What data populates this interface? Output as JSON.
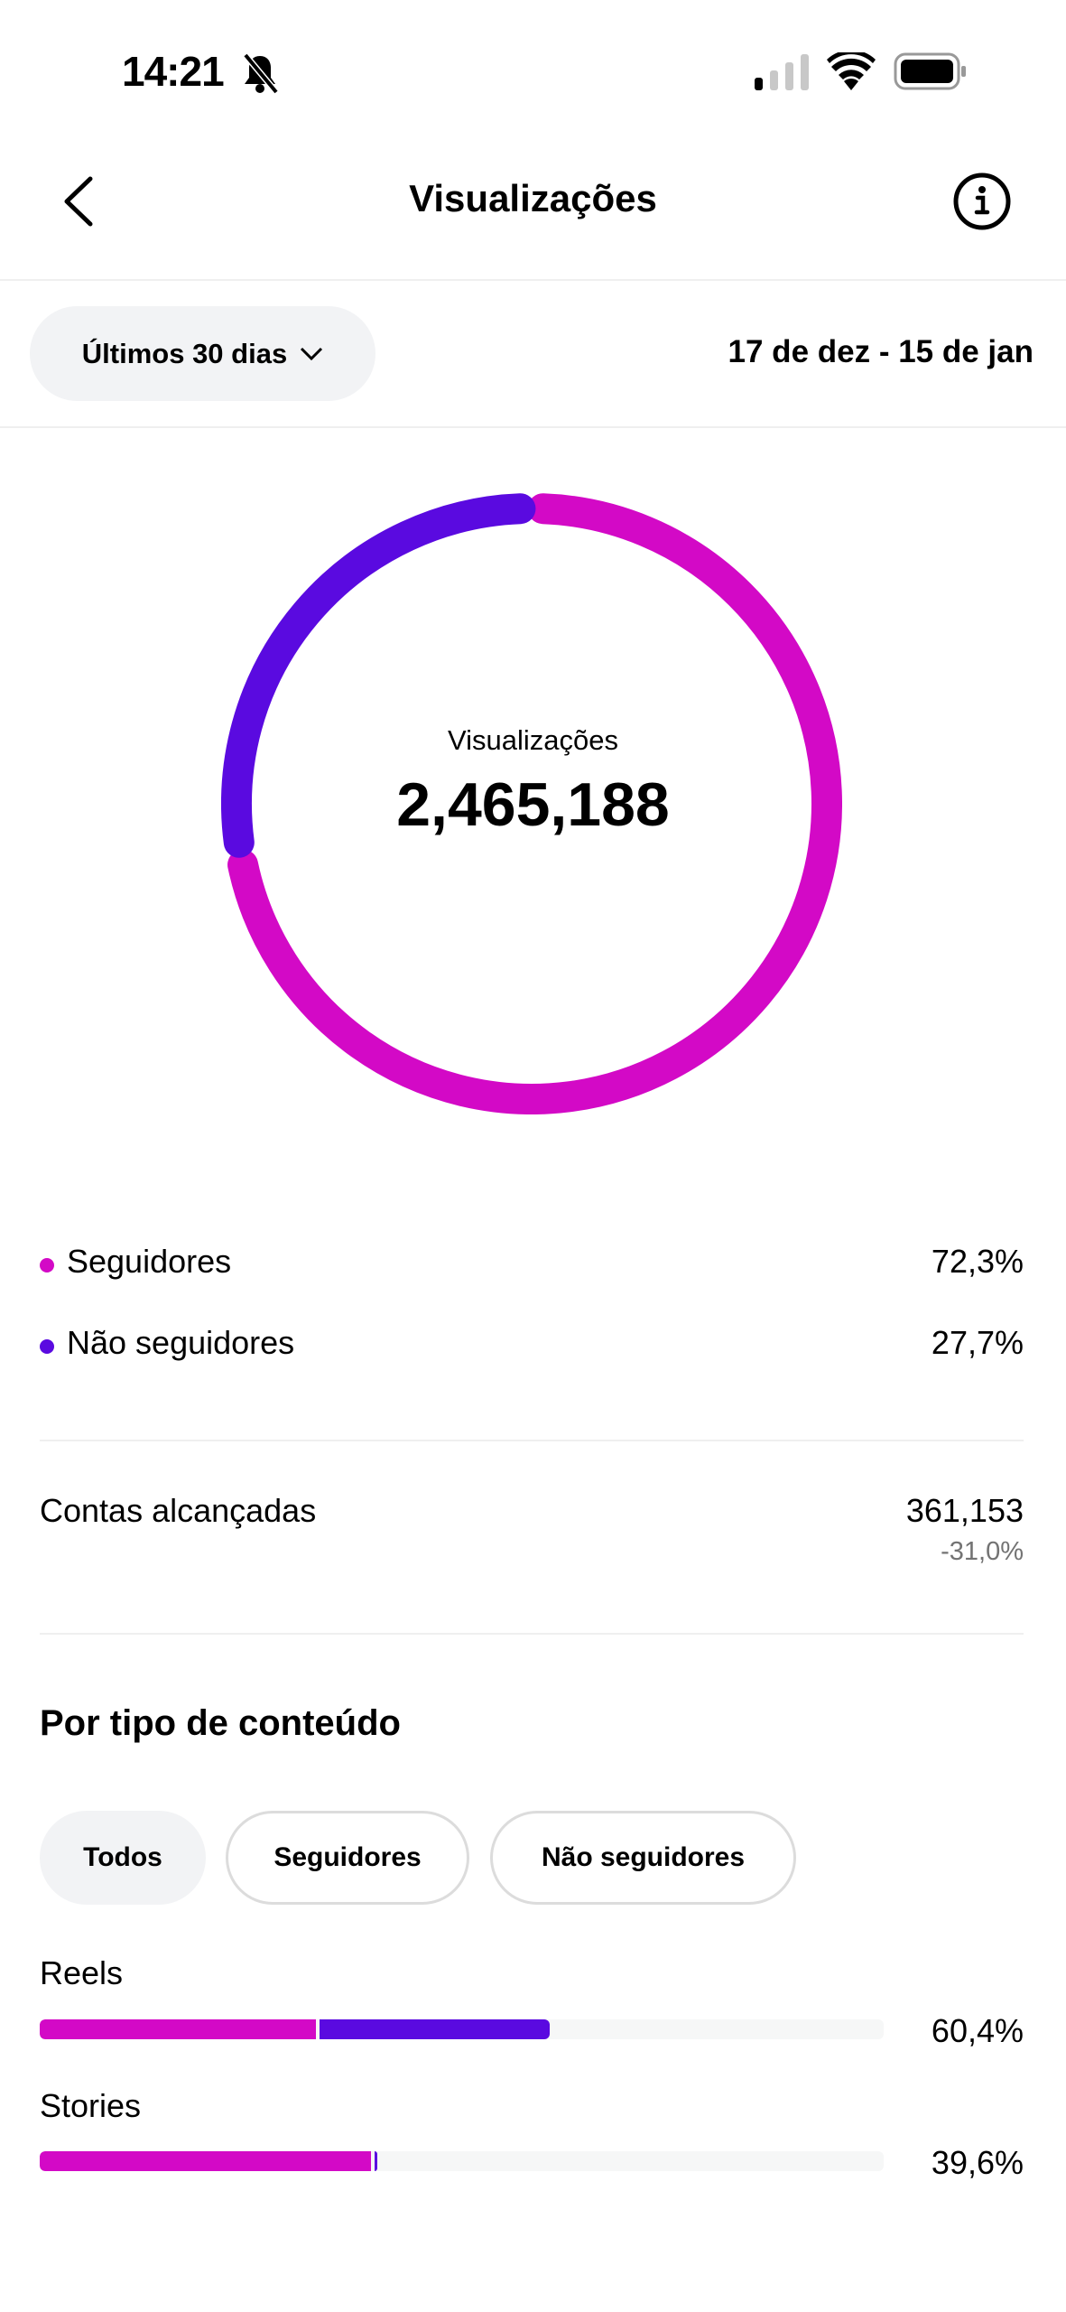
{
  "status_bar": {
    "time": "14:21",
    "icons": [
      "bell-slash-icon",
      "signal-icon",
      "wifi-icon",
      "battery-icon"
    ]
  },
  "header": {
    "title": "Visualizações",
    "back_icon": "chevron-left-icon",
    "info_icon": "info-icon"
  },
  "filter": {
    "period_label": "Últimos 30 dias",
    "date_range": "17 de dez - 15 de jan"
  },
  "colors": {
    "followers": "#D309C6",
    "non_followers": "#5A0AE0",
    "track": "#F6F7F7"
  },
  "chart_data": [
    {
      "type": "pie",
      "center_label": "Visualizações",
      "center_value": "2,465,188",
      "series": [
        {
          "name": "Seguidores",
          "value": 72.3
        },
        {
          "name": "Não seguidores",
          "value": 27.7
        }
      ]
    },
    {
      "type": "bar",
      "orientation": "horizontal",
      "stacked": true,
      "xlim": [
        0,
        100
      ],
      "categories": [
        "Reels",
        "Stories"
      ],
      "totals": [
        "60,4%",
        "39,6%"
      ],
      "series": [
        {
          "values": [
            32.7,
            39.2
          ]
        },
        {
          "values": [
            27.7,
            0.4
          ]
        }
      ]
    }
  ],
  "legend": [
    {
      "label": "Seguidores",
      "value": "72,3%"
    },
    {
      "label": "Não seguidores",
      "value": "27,7%"
    }
  ],
  "accounts": {
    "label": "Contas alcançadas",
    "value": "361,153",
    "change": "-31,0%"
  },
  "content_type": {
    "heading": "Por tipo de conteúdo",
    "chips": [
      "Todos",
      "Seguidores",
      "Não seguidores"
    ]
  }
}
